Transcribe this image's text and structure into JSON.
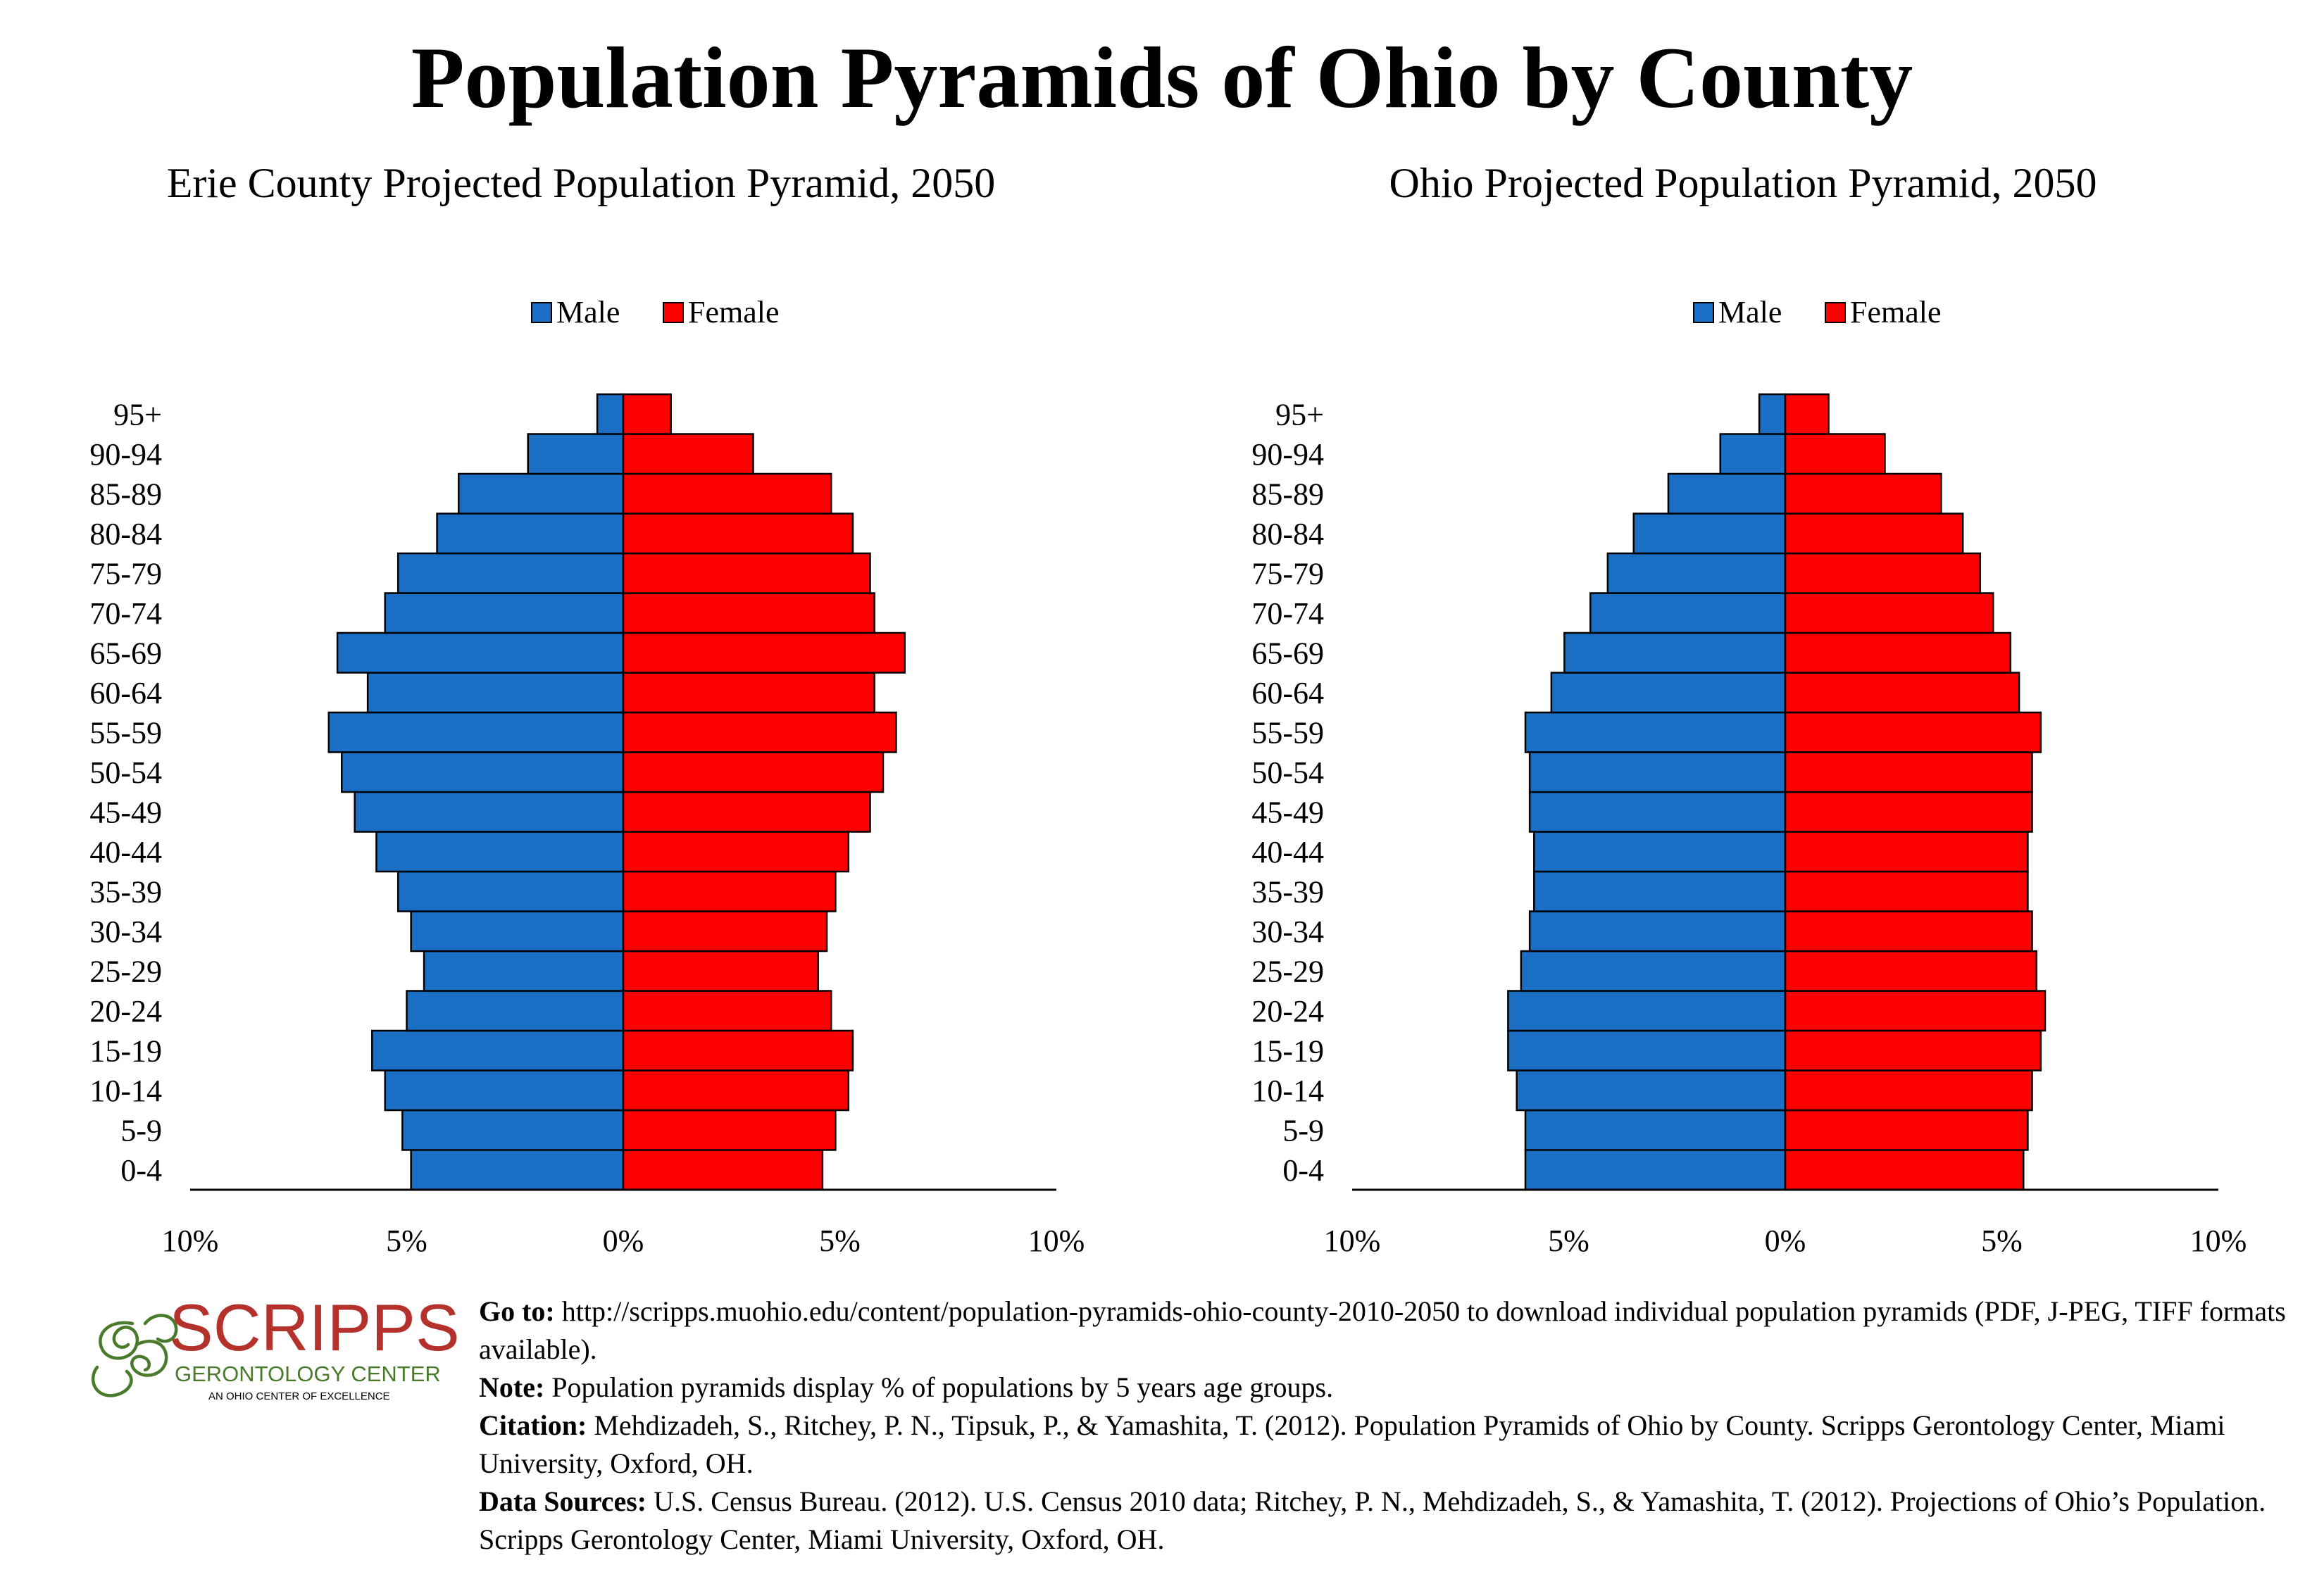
{
  "title": "Population Pyramids of Ohio by County",
  "chart_data": [
    {
      "type": "bar",
      "orientation": "horizontal",
      "title": "Erie County Projected Population Pyramid, 2050",
      "categories": [
        "0-4",
        "5-9",
        "10-14",
        "15-19",
        "20-24",
        "25-29",
        "30-34",
        "35-39",
        "40-44",
        "45-49",
        "50-54",
        "55-59",
        "60-64",
        "65-69",
        "70-74",
        "75-79",
        "80-84",
        "85-89",
        "90-94",
        "95+"
      ],
      "series": [
        {
          "name": "Male",
          "color": "#1a6fc4",
          "values": [
            -4.9,
            -5.1,
            -5.5,
            -5.8,
            -5.0,
            -4.6,
            -4.9,
            -5.2,
            -5.7,
            -6.2,
            -6.5,
            -6.8,
            -5.9,
            -6.6,
            -5.5,
            -5.2,
            -4.3,
            -3.8,
            -2.2,
            -0.6
          ]
        },
        {
          "name": "Female",
          "color": "#ff0000",
          "values": [
            4.6,
            4.9,
            5.2,
            5.3,
            4.8,
            4.5,
            4.7,
            4.9,
            5.2,
            5.7,
            6.0,
            6.3,
            5.8,
            6.5,
            5.8,
            5.7,
            5.3,
            4.8,
            3.0,
            1.1
          ]
        }
      ],
      "xlim": [
        -10,
        10
      ],
      "xticks": [
        "10%",
        "5%",
        "0%",
        "5%",
        "10%"
      ],
      "legend": "top-center",
      "grid": false
    },
    {
      "type": "bar",
      "orientation": "horizontal",
      "title": "Ohio Projected Population Pyramid, 2050",
      "categories": [
        "0-4",
        "5-9",
        "10-14",
        "15-19",
        "20-24",
        "25-29",
        "30-34",
        "35-39",
        "40-44",
        "45-49",
        "50-54",
        "55-59",
        "60-64",
        "65-69",
        "70-74",
        "75-79",
        "80-84",
        "85-89",
        "90-94",
        "95+"
      ],
      "series": [
        {
          "name": "Male",
          "color": "#1a6fc4",
          "values": [
            -6.0,
            -6.0,
            -6.2,
            -6.4,
            -6.4,
            -6.1,
            -5.9,
            -5.8,
            -5.8,
            -5.9,
            -5.9,
            -6.0,
            -5.4,
            -5.1,
            -4.5,
            -4.1,
            -3.5,
            -2.7,
            -1.5,
            -0.6
          ]
        },
        {
          "name": "Female",
          "color": "#ff0000",
          "values": [
            5.5,
            5.6,
            5.7,
            5.9,
            6.0,
            5.8,
            5.7,
            5.6,
            5.6,
            5.7,
            5.7,
            5.9,
            5.4,
            5.2,
            4.8,
            4.5,
            4.1,
            3.6,
            2.3,
            1.0
          ]
        }
      ],
      "xlim": [
        -10,
        10
      ],
      "xticks": [
        "10%",
        "5%",
        "0%",
        "5%",
        "10%"
      ],
      "legend": "top-center",
      "grid": false
    }
  ],
  "logo": {
    "name": "SCRIPPS",
    "subtitle": "GERONTOLOGY CENTER",
    "tagline": "AN OHIO CENTER OF EXCELLENCE",
    "color": "#b5322c",
    "accent": "#4a7a2c"
  },
  "notes": {
    "goto_label": "Go to:",
    "goto_text": "http://scripps.muohio.edu/content/population-pyramids-ohio-county-2010-2050 to download individual population pyramids (PDF, J-PEG, TIFF formats available).",
    "note_label": "Note:",
    "note_text": "Population pyramids display % of populations by 5 years age groups.",
    "citation_label": "Citation:",
    "citation_text": "Mehdizadeh, S., Ritchey, P. N., Tipsuk, P., & Yamashita, T. (2012). Population Pyramids of Ohio by County. Scripps Gerontology Center, Miami University, Oxford, OH.",
    "sources_label": "Data Sources:",
    "sources_text": "U.S. Census Bureau. (2012). U.S. Census 2010 data; Ritchey, P. N., Mehdizadeh, S., & Yamashita, T. (2012). Projections of Ohio’s Population. Scripps Gerontology Center, Miami University, Oxford, OH."
  }
}
